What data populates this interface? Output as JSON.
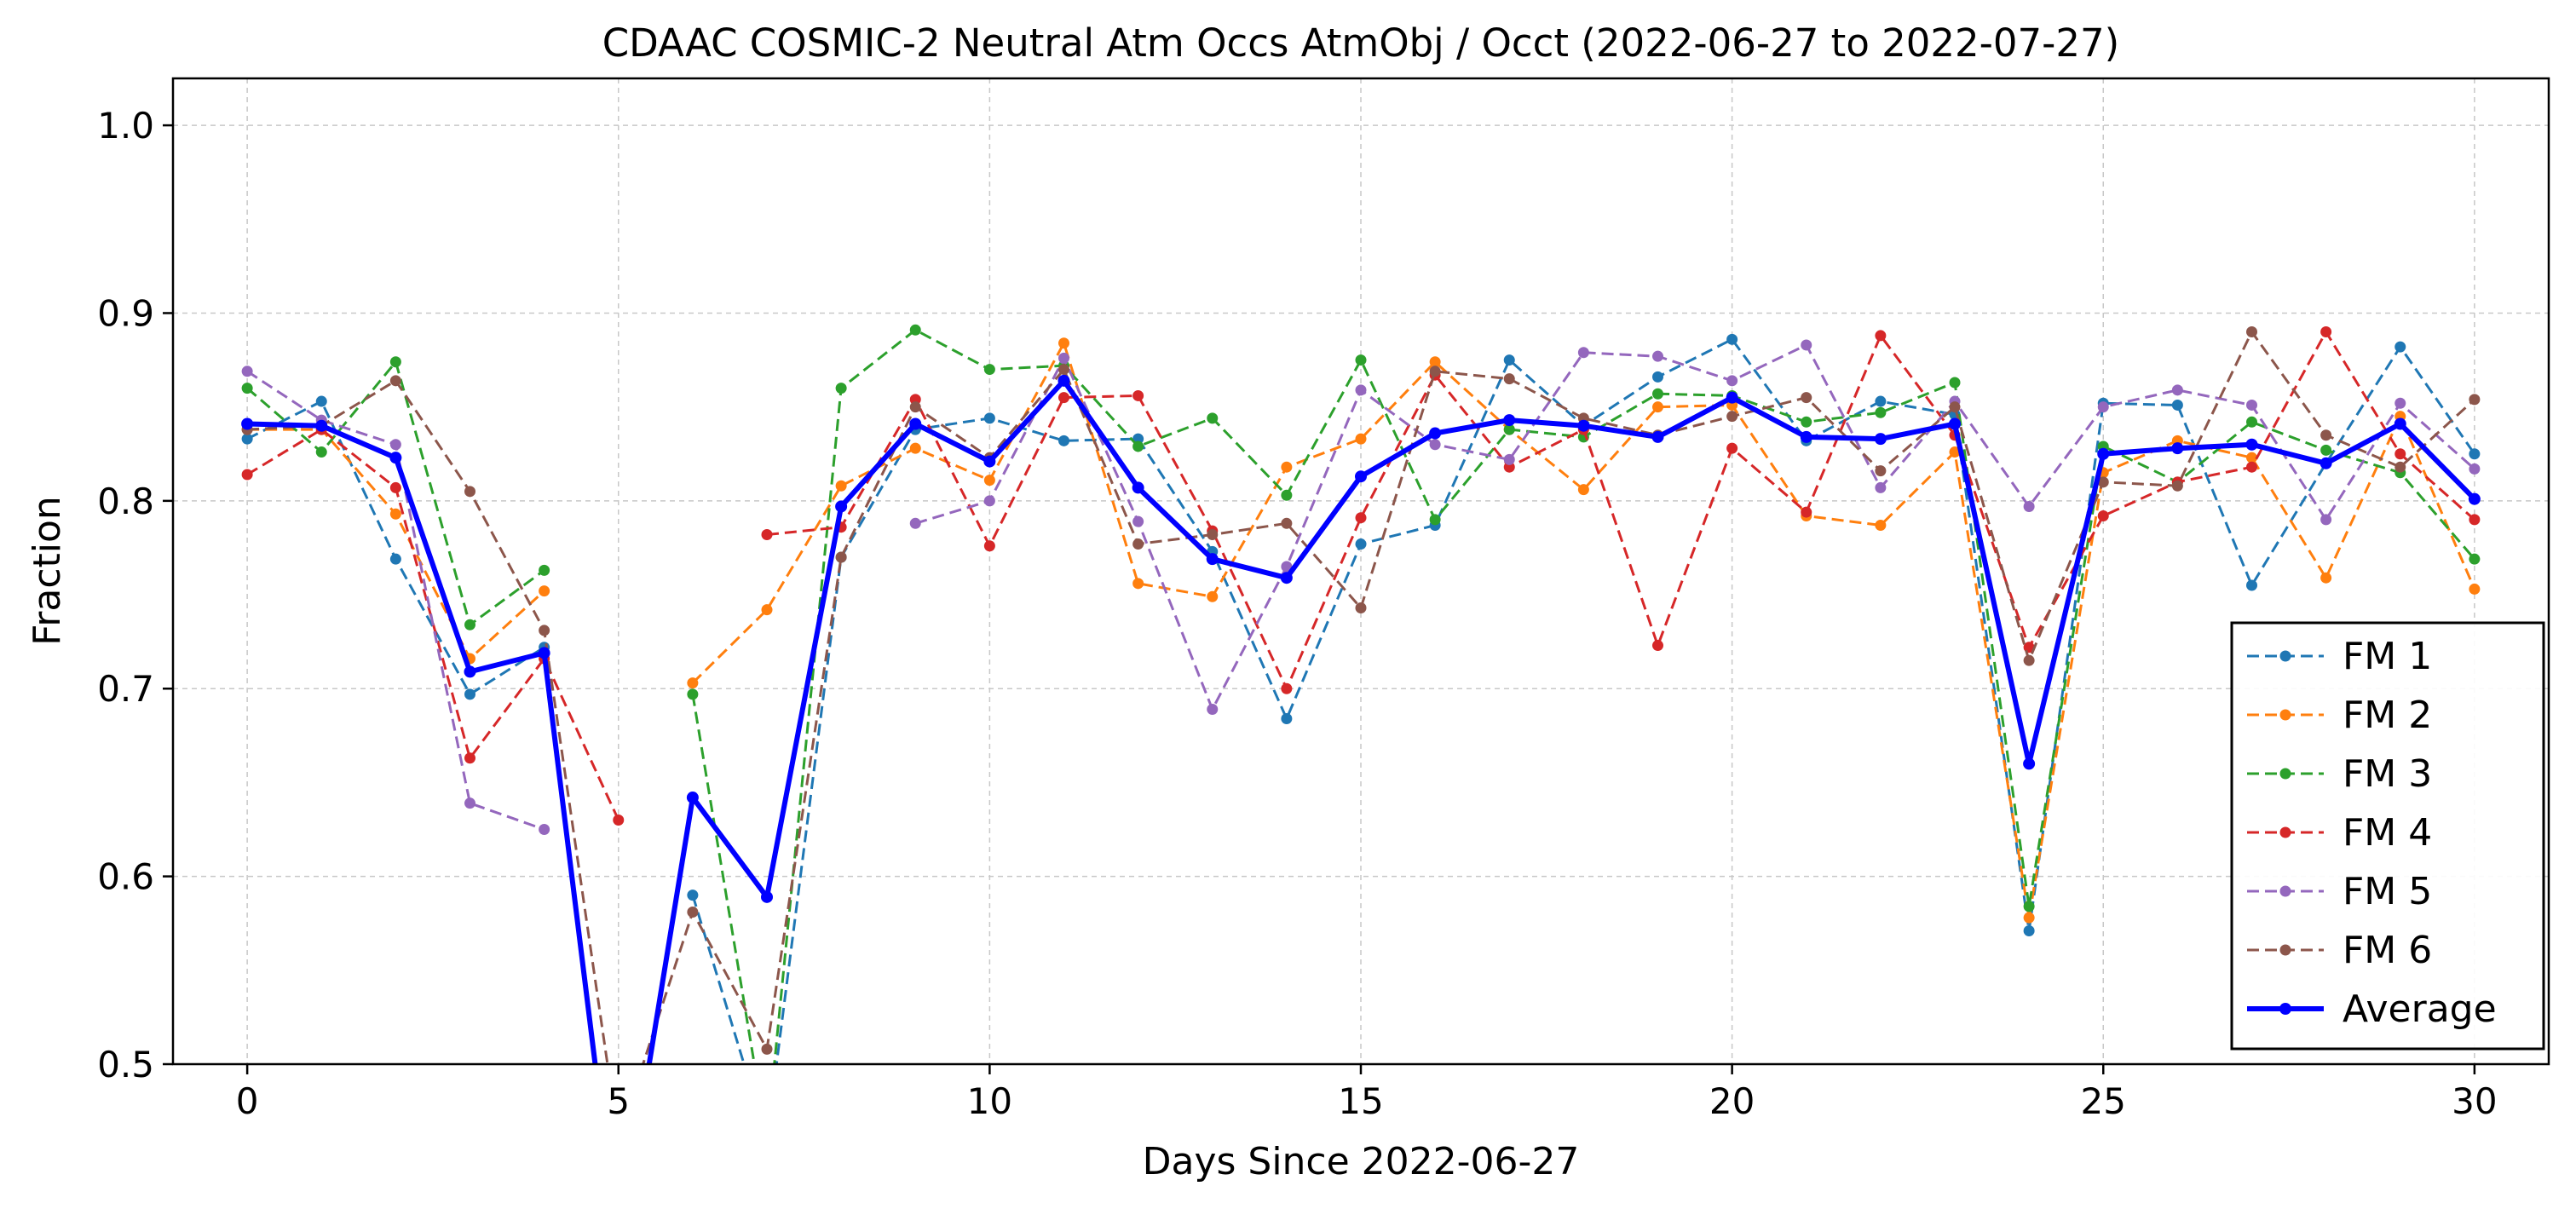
{
  "chart_data": {
    "type": "line",
    "title": "CDAAC COSMIC-2 Neutral Atm Occs AtmObj / Occt (2022-06-27 to 2022-07-27)",
    "xlabel": "Days Since 2022-06-27",
    "ylabel": "Fraction",
    "xlim": [
      -1,
      31
    ],
    "ylim": [
      0.5,
      1.025
    ],
    "xticks": [
      0,
      5,
      10,
      15,
      20,
      25,
      30
    ],
    "xtick_labels": [
      "0",
      "5",
      "10",
      "15",
      "20",
      "25",
      "30"
    ],
    "yticks": [
      0.5,
      0.6,
      0.7,
      0.8,
      0.9,
      1.0
    ],
    "ytick_labels": [
      "0.5",
      "0.6",
      "0.7",
      "0.8",
      "0.9",
      "1.0"
    ],
    "grid": true,
    "legend_position": "bottom-right",
    "x": [
      0,
      1,
      2,
      3,
      4,
      5,
      6,
      7,
      8,
      9,
      10,
      11,
      12,
      13,
      14,
      15,
      16,
      17,
      18,
      19,
      20,
      21,
      22,
      23,
      24,
      25,
      26,
      27,
      28,
      29,
      30
    ],
    "series": [
      {
        "name": "FM 1",
        "color": "#1f77b4",
        "style": "dashed",
        "values": [
          0.833,
          0.853,
          0.769,
          0.697,
          0.722,
          null,
          0.59,
          0.46,
          0.77,
          0.838,
          0.844,
          0.832,
          0.833,
          0.773,
          0.684,
          0.777,
          0.787,
          0.875,
          0.84,
          0.866,
          0.886,
          0.832,
          0.853,
          0.846,
          0.571,
          0.852,
          0.851,
          0.755,
          0.82,
          0.882,
          0.825
        ]
      },
      {
        "name": "FM 2",
        "color": "#ff7f0e",
        "style": "dashed",
        "values": [
          0.838,
          0.838,
          0.793,
          0.716,
          0.752,
          null,
          0.703,
          0.742,
          0.808,
          0.828,
          0.811,
          0.884,
          0.756,
          0.749,
          0.818,
          0.833,
          0.874,
          0.838,
          0.806,
          0.85,
          0.851,
          0.792,
          0.787,
          0.826,
          0.578,
          0.815,
          0.832,
          0.823,
          0.759,
          0.845,
          0.753
        ]
      },
      {
        "name": "FM 3",
        "color": "#2ca02c",
        "style": "dashed",
        "values": [
          0.86,
          0.826,
          0.874,
          0.734,
          0.763,
          null,
          0.697,
          0.46,
          0.86,
          0.891,
          0.87,
          0.872,
          0.829,
          0.844,
          0.803,
          0.875,
          0.79,
          0.838,
          0.834,
          0.857,
          0.856,
          0.842,
          0.847,
          0.863,
          0.584,
          0.829,
          0.81,
          0.842,
          0.827,
          0.815,
          0.769
        ]
      },
      {
        "name": "FM 4",
        "color": "#d62728",
        "style": "dashed",
        "values": [
          0.814,
          0.838,
          0.807,
          0.663,
          0.716,
          0.63,
          null,
          0.782,
          0.786,
          0.854,
          0.776,
          0.855,
          0.856,
          0.784,
          0.7,
          0.791,
          0.867,
          0.818,
          0.838,
          0.723,
          0.828,
          0.794,
          0.888,
          0.835,
          0.722,
          0.792,
          0.81,
          0.818,
          0.89,
          0.825,
          0.79
        ]
      },
      {
        "name": "FM 5",
        "color": "#9467bd",
        "style": "dashed",
        "values": [
          0.869,
          0.843,
          0.83,
          0.639,
          0.625,
          null,
          null,
          null,
          null,
          0.788,
          0.8,
          0.876,
          0.789,
          0.689,
          0.765,
          0.859,
          0.83,
          0.822,
          0.879,
          0.877,
          0.864,
          0.883,
          0.807,
          0.853,
          0.797,
          0.85,
          0.859,
          0.851,
          0.79,
          0.852,
          0.817
        ]
      },
      {
        "name": "FM 6",
        "color": "#8c564b",
        "style": "dashed",
        "values": [
          0.838,
          0.84,
          0.864,
          0.805,
          0.731,
          0.46,
          0.581,
          0.508,
          0.77,
          0.85,
          0.823,
          0.87,
          0.777,
          0.782,
          0.788,
          0.743,
          0.869,
          0.865,
          0.844,
          0.835,
          0.845,
          0.855,
          0.816,
          0.85,
          0.715,
          0.81,
          0.808,
          0.89,
          0.835,
          0.818,
          0.854
        ]
      },
      {
        "name": "Average",
        "color": "#0000ff",
        "style": "solid",
        "values": [
          0.841,
          0.84,
          0.823,
          0.709,
          0.719,
          0.4,
          0.642,
          0.589,
          0.797,
          0.841,
          0.821,
          0.864,
          0.807,
          0.769,
          0.759,
          0.813,
          0.836,
          0.843,
          0.84,
          0.834,
          0.855,
          0.834,
          0.833,
          0.841,
          0.66,
          0.825,
          0.828,
          0.83,
          0.82,
          0.841,
          0.801
        ]
      }
    ]
  }
}
